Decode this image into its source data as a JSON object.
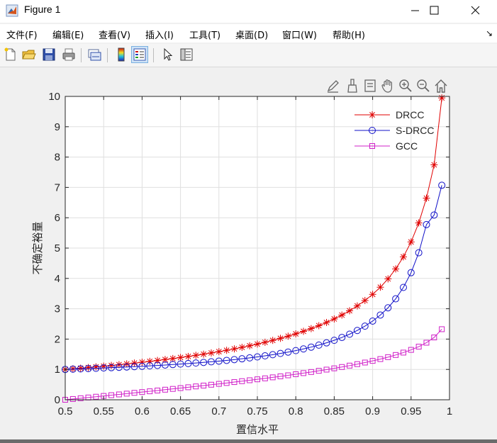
{
  "window": {
    "title": "Figure 1",
    "menu": [
      "文件(F)",
      "编辑(E)",
      "查看(V)",
      "插入(I)",
      "工具(T)",
      "桌面(D)",
      "窗口(W)",
      "帮助(H)"
    ],
    "menu_overflow_icon": "arrow-icon"
  },
  "toolbar_icons": [
    "new-figure-icon",
    "open-file-icon",
    "save-icon",
    "print-icon",
    "link-plot-icon",
    "colorbar-icon",
    "legend-icon",
    "pointer-icon",
    "property-inspector-icon"
  ],
  "axes_toolbar_icons": [
    "brush-edit-icon",
    "data-brush-icon",
    "data-tips-icon",
    "pan-icon",
    "zoom-in-icon",
    "zoom-out-icon",
    "home-icon"
  ],
  "colors": {
    "drcc": "#e00000",
    "sdrcc": "#1010c8",
    "gcc": "#d020c8"
  },
  "chart_data": {
    "type": "line",
    "title": "",
    "xlabel": "置信水平",
    "ylabel": "不确定裕量",
    "xlim": [
      0.5,
      1
    ],
    "ylim": [
      0,
      10
    ],
    "xticks": [
      "0.5",
      "0.55",
      "0.6",
      "0.65",
      "0.7",
      "0.75",
      "0.8",
      "0.85",
      "0.9",
      "0.95",
      "1"
    ],
    "yticks": [
      "0",
      "1",
      "2",
      "3",
      "4",
      "5",
      "6",
      "7",
      "8",
      "9",
      "10"
    ],
    "grid": true,
    "legend_position": "top-right",
    "x": [
      0.5,
      0.51,
      0.52,
      0.53,
      0.54,
      0.55,
      0.56,
      0.57,
      0.58,
      0.59,
      0.6,
      0.61,
      0.62,
      0.63,
      0.64,
      0.65,
      0.66,
      0.67,
      0.68,
      0.69,
      0.7,
      0.71,
      0.72,
      0.73,
      0.74,
      0.75,
      0.76,
      0.77,
      0.78,
      0.79,
      0.8,
      0.81,
      0.82,
      0.83,
      0.84,
      0.85,
      0.86,
      0.87,
      0.88,
      0.89,
      0.9,
      0.91,
      0.92,
      0.93,
      0.94,
      0.95,
      0.96,
      0.97,
      0.98,
      0.99
    ],
    "series": [
      {
        "name": "DRCC",
        "marker": "asterisk",
        "values": [
          1.0,
          1.02,
          1.04,
          1.062,
          1.085,
          1.108,
          1.132,
          1.157,
          1.183,
          1.21,
          1.237,
          1.266,
          1.296,
          1.327,
          1.359,
          1.393,
          1.428,
          1.465,
          1.503,
          1.544,
          1.586,
          1.631,
          1.678,
          1.728,
          1.78,
          1.836,
          1.895,
          1.958,
          2.025,
          2.096,
          2.173,
          2.256,
          2.345,
          2.442,
          2.548,
          2.664,
          2.792,
          2.934,
          3.093,
          3.272,
          3.475,
          3.71,
          3.985,
          4.313,
          4.711,
          5.203,
          5.829,
          6.646,
          7.744,
          9.95
        ]
      },
      {
        "name": "S-DRCC",
        "marker": "circle",
        "values": [
          1.0,
          1.01,
          1.019,
          1.029,
          1.038,
          1.049,
          1.059,
          1.07,
          1.081,
          1.093,
          1.105,
          1.118,
          1.131,
          1.146,
          1.161,
          1.177,
          1.194,
          1.212,
          1.231,
          1.252,
          1.274,
          1.298,
          1.324,
          1.351,
          1.381,
          1.413,
          1.448,
          1.486,
          1.527,
          1.572,
          1.621,
          1.676,
          1.736,
          1.802,
          1.877,
          1.96,
          2.054,
          2.161,
          2.284,
          2.427,
          2.594,
          2.793,
          3.032,
          3.328,
          3.703,
          4.19,
          4.846,
          5.775,
          6.09,
          7.07
        ]
      },
      {
        "name": "GCC",
        "marker": "square",
        "values": [
          0.0,
          0.025,
          0.05,
          0.075,
          0.1,
          0.126,
          0.151,
          0.176,
          0.202,
          0.228,
          0.253,
          0.279,
          0.305,
          0.332,
          0.358,
          0.385,
          0.412,
          0.44,
          0.468,
          0.496,
          0.524,
          0.553,
          0.583,
          0.613,
          0.643,
          0.674,
          0.706,
          0.739,
          0.772,
          0.806,
          0.842,
          0.878,
          0.915,
          0.954,
          0.994,
          1.036,
          1.08,
          1.126,
          1.175,
          1.227,
          1.282,
          1.341,
          1.405,
          1.476,
          1.555,
          1.645,
          1.751,
          1.881,
          2.054,
          2.326
        ]
      }
    ]
  }
}
